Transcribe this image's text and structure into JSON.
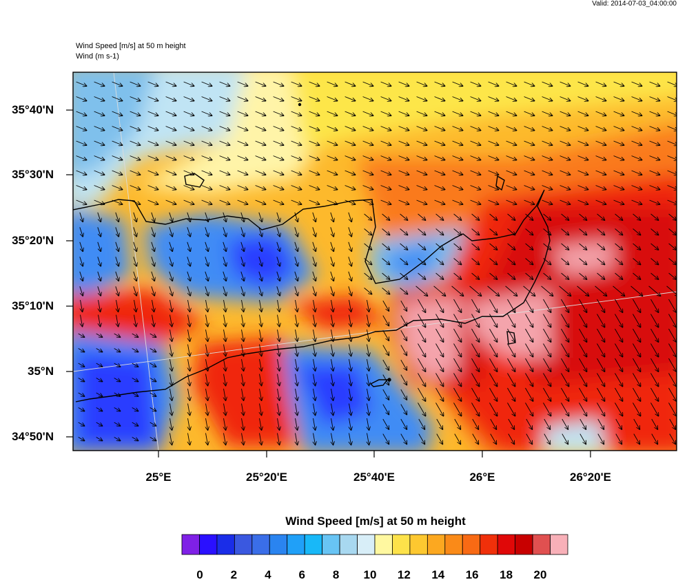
{
  "valid_text": "Valid: 2014-07-03_04:00:00",
  "plot_titles": [
    "Wind Speed [m/s] at 50 m height",
    "Wind   (m s-1)"
  ],
  "map": {
    "lat_labels": [
      "35°40'N",
      "35°30'N",
      "35°20'N",
      "35°10'N",
      "35°N",
      "34°50'N"
    ],
    "lon_labels": [
      "25°E",
      "25°20'E",
      "25°40'E",
      "26°E",
      "26°20'E"
    ],
    "field_palette": [
      "#2c3cff",
      "#3f8cf5",
      "#7fc0ec",
      "#c0e4f4",
      "#fff4a8",
      "#fde64a",
      "#fdb92c",
      "#fa7a1c",
      "#f0260e",
      "#d80a0a",
      "#f4a4ac"
    ]
  },
  "colorbar": {
    "title": "Wind Speed [m/s] at 50 m height",
    "colors": [
      "#7f20e6",
      "#2a10ff",
      "#1a2de8",
      "#3a58e0",
      "#3a6ee8",
      "#2a84f0",
      "#20a0f8",
      "#18b8f8",
      "#68c4f4",
      "#a8d8f0",
      "#d8eef8",
      "#fff8a0",
      "#fde24a",
      "#fdc830",
      "#fca820",
      "#fa8a18",
      "#f86a14",
      "#f0300a",
      "#e00808",
      "#c80000",
      "#e05050",
      "#f8b0b8"
    ],
    "labels": [
      "0",
      "2",
      "4",
      "6",
      "8",
      "10",
      "12",
      "14",
      "16",
      "18",
      "20"
    ]
  }
}
